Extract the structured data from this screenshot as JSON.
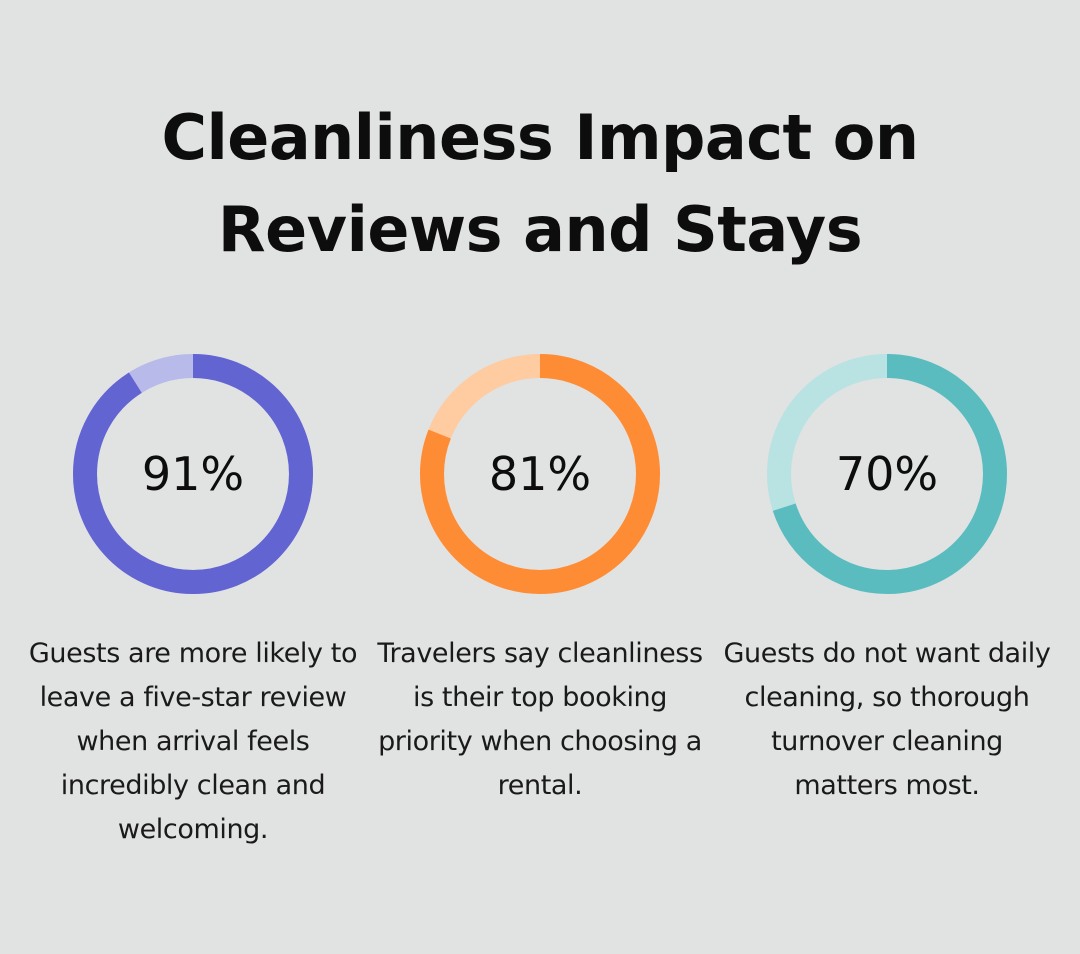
{
  "title_lines": [
    "Cleanliness Impact on",
    "Reviews and Stays"
  ],
  "chart_data": [
    {
      "type": "pie",
      "variant": "donut",
      "value": 91,
      "label": "91%",
      "description": "Guests are more likely to leave a five-star review when arrival feels incredibly clean and welcoming.",
      "color": "#6264d2",
      "track_color": "#b8bae9"
    },
    {
      "type": "pie",
      "variant": "donut",
      "value": 81,
      "label": "81%",
      "description": "Travelers say cleanliness is their top booking priority when choosing a rental.",
      "color": "#fe8c35",
      "track_color": "#ffcba1"
    },
    {
      "type": "pie",
      "variant": "donut",
      "value": 70,
      "label": "70%",
      "description": "Guests do not want daily cleaning, so thorough turnover cleaning matters most.",
      "color": "#5bbcbf",
      "track_color": "#b9e2e3"
    }
  ]
}
